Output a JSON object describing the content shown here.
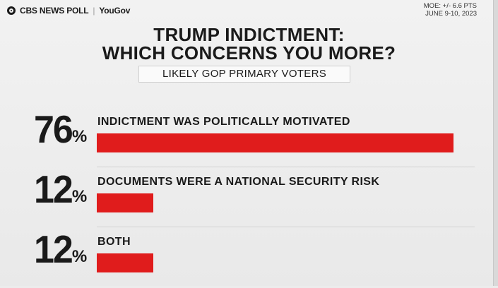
{
  "header": {
    "brand": "CBS NEWS POLL",
    "partner": "YouGov",
    "moe": "MOE: +/- 6.6 PTS",
    "dates": "JUNE 9-10, 2023"
  },
  "chart_data": {
    "type": "bar",
    "orientation": "horizontal",
    "title": "TRUMP INDICTMENT: WHICH CONCERNS YOU MORE?",
    "title_lines": [
      "TRUMP INDICTMENT:",
      "WHICH CONCERNS YOU MORE?"
    ],
    "subtitle": "LIKELY GOP PRIMARY VOTERS",
    "unit": "%",
    "xlim": [
      0,
      76
    ],
    "bar_color": "#e01c1c",
    "categories": [
      "INDICTMENT WAS POLITICALLY MOTIVATED",
      "DOCUMENTS WERE A NATIONAL SECURITY RISK",
      "BOTH"
    ],
    "values": [
      76,
      12,
      12
    ],
    "value_labels": [
      "76",
      "12",
      "12"
    ]
  }
}
